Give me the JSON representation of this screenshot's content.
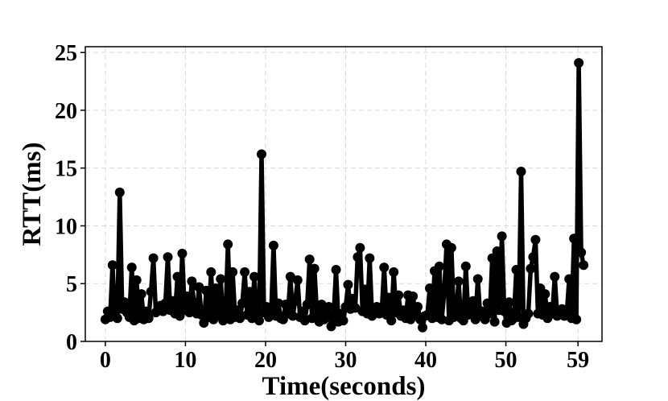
{
  "chart_data": {
    "type": "line",
    "xlabel": "Time(seconds)",
    "ylabel": "RTT(ms)",
    "xlim": [
      -2.5,
      62
    ],
    "ylim": [
      0,
      25.5
    ],
    "xticks": [
      0,
      10,
      20,
      30,
      40,
      50,
      59
    ],
    "yticks": [
      0,
      5,
      10,
      15,
      20,
      25
    ],
    "grid": true,
    "line_color": "#000000",
    "marker": "circle",
    "series": [
      {
        "x": [
          0.0,
          0.3,
          0.6,
          0.9,
          1.2,
          1.5,
          1.8,
          2.1,
          2.4,
          2.7,
          3.0,
          3.3,
          3.6,
          3.9,
          4.2,
          4.5,
          4.8,
          5.1,
          5.4,
          5.7,
          6.0,
          6.3,
          6.6,
          6.9,
          7.2,
          7.5,
          7.8,
          8.1,
          8.4,
          8.7,
          9.0,
          9.3,
          9.6,
          9.9,
          10.2,
          10.5,
          10.8,
          11.1,
          11.4,
          11.7,
          12.0,
          12.3,
          12.6,
          12.9,
          13.2,
          13.5,
          13.8,
          14.1,
          14.4,
          14.7,
          15.0,
          15.3,
          15.6,
          15.9,
          16.2,
          16.5,
          16.8,
          17.1,
          17.4,
          17.7,
          18.0,
          18.3,
          18.6,
          18.9,
          19.2,
          19.5,
          19.8,
          20.1,
          20.4,
          20.7,
          21.0,
          21.3,
          21.6,
          21.9,
          22.2,
          22.5,
          22.8,
          23.1,
          23.4,
          23.7,
          24.0,
          24.3,
          24.6,
          24.9,
          25.2,
          25.5,
          25.8,
          26.1,
          26.4,
          26.7,
          27.0,
          27.3,
          27.6,
          27.9,
          28.2,
          28.5,
          28.8,
          29.1,
          29.4,
          29.7,
          30.0,
          30.3,
          30.6,
          30.9,
          31.2,
          31.5,
          31.8,
          32.1,
          32.4,
          32.7,
          33.0,
          33.3,
          33.6,
          33.9,
          34.2,
          34.5,
          34.8,
          35.1,
          35.4,
          35.7,
          36.0,
          36.3,
          36.6,
          36.9,
          37.2,
          37.5,
          37.8,
          38.1,
          38.4,
          38.7,
          39.0,
          39.3,
          39.6,
          39.9,
          40.2,
          40.5,
          40.8,
          41.1,
          41.4,
          41.7,
          42.0,
          42.3,
          42.6,
          42.9,
          43.2,
          43.5,
          43.8,
          44.1,
          44.4,
          44.7,
          45.0,
          45.3,
          45.6,
          45.9,
          46.2,
          46.5,
          46.8,
          47.1,
          47.4,
          47.7,
          48.0,
          48.3,
          48.6,
          48.9,
          49.2,
          49.5,
          49.8,
          50.1,
          50.4,
          50.7,
          51.0,
          51.3,
          51.6,
          51.9,
          52.2,
          52.5,
          52.8,
          53.1,
          53.4,
          53.7,
          54.0,
          54.3,
          54.6,
          54.9,
          55.2,
          55.5,
          55.8,
          56.1,
          56.4,
          56.7,
          57.0,
          57.3,
          57.6,
          57.9,
          58.2,
          58.5,
          58.8,
          59.1,
          59.4,
          59.7
        ],
        "values": [
          1.9,
          2.6,
          2.1,
          6.6,
          2.4,
          2.0,
          12.9,
          2.8,
          3.4,
          2.5,
          2.1,
          6.4,
          1.8,
          5.3,
          2.0,
          4.1,
          1.9,
          2.6,
          2.0,
          4.3,
          7.2,
          2.5,
          2.8,
          3.1,
          2.6,
          3.3,
          7.3,
          2.7,
          3.5,
          2.4,
          5.6,
          2.2,
          7.6,
          2.7,
          3.9,
          2.5,
          5.2,
          3.0,
          2.4,
          4.7,
          2.3,
          1.6,
          4.4,
          2.1,
          6.0,
          1.9,
          4.6,
          2.3,
          5.4,
          1.8,
          2.2,
          8.4,
          1.9,
          6.0,
          2.1,
          2.7,
          2.0,
          3.3,
          6.0,
          2.3,
          4.3,
          2.0,
          5.6,
          2.2,
          1.8,
          16.2,
          2.5,
          3.0,
          2.1,
          2.4,
          8.3,
          2.2,
          3.3,
          2.0,
          1.9,
          3.2,
          2.4,
          5.6,
          2.2,
          3.5,
          5.3,
          2.1,
          2.6,
          1.8,
          3.2,
          7.1,
          2.0,
          6.3,
          2.5,
          1.7,
          3.2,
          1.9,
          2.5,
          3.0,
          1.3,
          2.2,
          6.2,
          1.7,
          2.4,
          1.8,
          3.0,
          4.9,
          2.8,
          3.7,
          2.9,
          7.3,
          8.1,
          2.6,
          4.5,
          2.4,
          7.2,
          2.2,
          2.8,
          3.0,
          2.4,
          2.6,
          6.4,
          2.3,
          3.8,
          1.8,
          6.0,
          2.5,
          4.0,
          2.2,
          2.7,
          2.0,
          4.0,
          1.9,
          3.9,
          2.4,
          3.0,
          1.9,
          1.2,
          2.2,
          2.3,
          4.6,
          2.0,
          6.1,
          2.1,
          6.5,
          1.9,
          4.2,
          8.4,
          1.8,
          8.1,
          2.1,
          2.5,
          5.2,
          2.0,
          1.8,
          6.5,
          2.3,
          2.5,
          3.5,
          1.9,
          5.4,
          2.2,
          2.6,
          1.9,
          3.3,
          2.4,
          7.2,
          1.7,
          7.8,
          2.7,
          9.1,
          2.6,
          1.6,
          3.4,
          1.8,
          2.0,
          6.2,
          2.1,
          14.7,
          1.5,
          2.0,
          2.4,
          6.3,
          7.3,
          8.8,
          2.4,
          4.6,
          2.3,
          4.1,
          2.0,
          3.0,
          2.4,
          5.6,
          2.2,
          2.5,
          2.8,
          2.2,
          2.4,
          5.4,
          2.0,
          8.9,
          1.9,
          24.1,
          7.7,
          6.6
        ]
      }
    ]
  }
}
